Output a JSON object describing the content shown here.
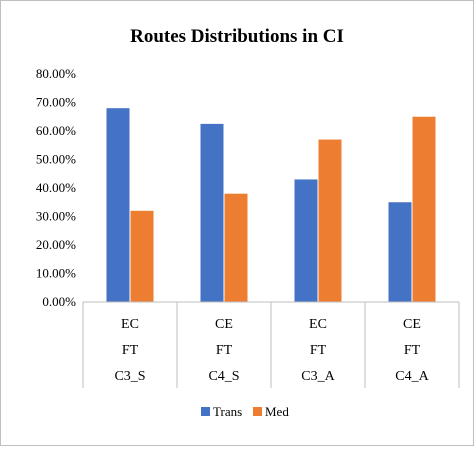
{
  "chart_data": {
    "type": "bar",
    "title": "Routes Distributions in CI",
    "categories": [
      [
        "EC",
        "FT",
        "C3_S"
      ],
      [
        "CE",
        "FT",
        "C4_S"
      ],
      [
        "EC",
        "FT",
        "C3_A"
      ],
      [
        "CE",
        "FT",
        "C4_A"
      ]
    ],
    "series": [
      {
        "name": "Trans",
        "values": [
          0.68,
          0.625,
          0.43,
          0.35
        ]
      },
      {
        "name": "Med",
        "values": [
          0.32,
          0.38,
          0.57,
          0.65
        ]
      }
    ],
    "ylim": [
      0,
      0.8
    ],
    "yticks": [
      "0.00%",
      "10.00%",
      "20.00%",
      "30.00%",
      "40.00%",
      "50.00%",
      "60.00%",
      "70.00%",
      "80.00%"
    ],
    "ytick_values": [
      0,
      0.1,
      0.2,
      0.3,
      0.4,
      0.5,
      0.6,
      0.7,
      0.8
    ],
    "grid": false,
    "legend_position": "bottom",
    "colors": {
      "Trans": "#4472C4",
      "Med": "#ED7D31",
      "axis": "#bfbfbf",
      "text": "#000000"
    }
  }
}
